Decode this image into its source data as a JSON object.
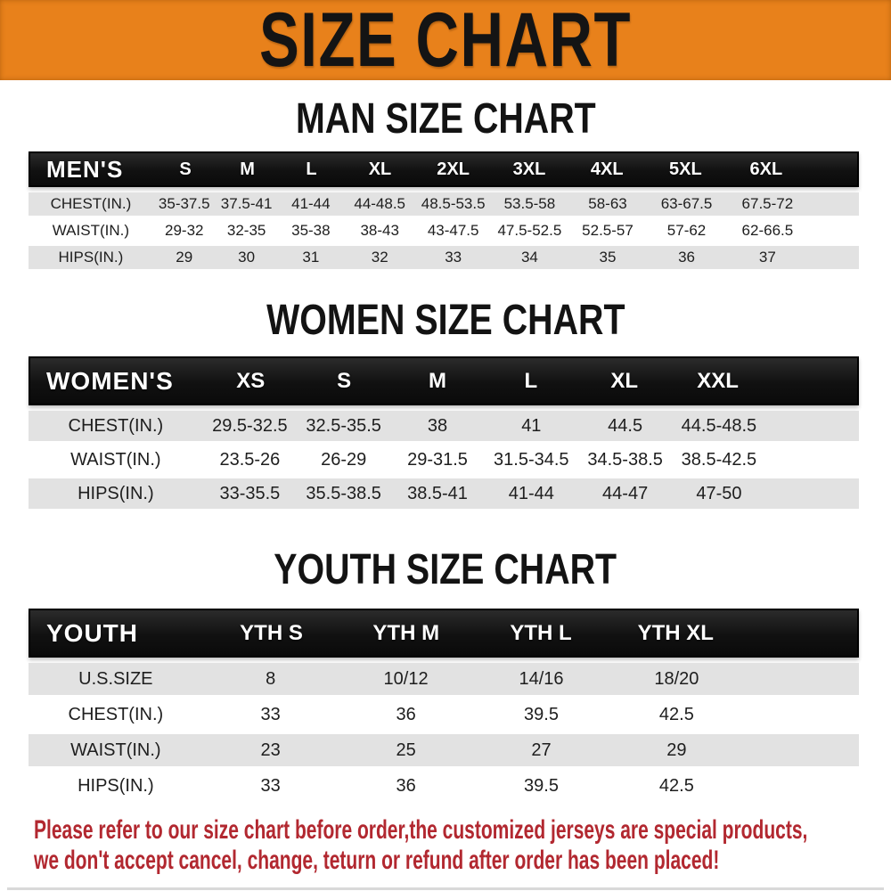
{
  "banner": {
    "title": "SIZE CHART",
    "bg_color": "#E8811B",
    "text_color": "#141414"
  },
  "colors": {
    "row_stripe": "#E2E2E2",
    "header_bg": "#121212",
    "header_text": "#FFFFFF",
    "note_red": "#B22830"
  },
  "sections": [
    {
      "title": "MAN SIZE CHART",
      "header_label": "MEN'S",
      "columns": [
        "S",
        "M",
        "L",
        "XL",
        "2XL",
        "3XL",
        "4XL",
        "5XL",
        "6XL"
      ],
      "rows": [
        {
          "label": "CHEST(IN.)",
          "values": [
            "35-37.5",
            "37.5-41",
            "41-44",
            "44-48.5",
            "48.5-53.5",
            "53.5-58",
            "58-63",
            "63-67.5",
            "67.5-72"
          ]
        },
        {
          "label": "WAIST(IN.)",
          "values": [
            "29-32",
            "32-35",
            "35-38",
            "38-43",
            "43-47.5",
            "47.5-52.5",
            "52.5-57",
            "57-62",
            "62-66.5"
          ]
        },
        {
          "label": "HIPS(IN.)",
          "values": [
            "29",
            "30",
            "31",
            "32",
            "33",
            "34",
            "35",
            "36",
            "37"
          ]
        }
      ]
    },
    {
      "title": "WOMEN SIZE CHART",
      "header_label": "WOMEN'S",
      "columns": [
        "XS",
        "S",
        "M",
        "L",
        "XL",
        "XXL"
      ],
      "rows": [
        {
          "label": "CHEST(IN.)",
          "values": [
            "29.5-32.5",
            "32.5-35.5",
            "38",
            "41",
            "44.5",
            "44.5-48.5"
          ]
        },
        {
          "label": "WAIST(IN.)",
          "values": [
            "23.5-26",
            "26-29",
            "29-31.5",
            "31.5-34.5",
            "34.5-38.5",
            "38.5-42.5"
          ]
        },
        {
          "label": "HIPS(IN.)",
          "values": [
            "33-35.5",
            "35.5-38.5",
            "38.5-41",
            "41-44",
            "44-47",
            "47-50"
          ]
        }
      ]
    },
    {
      "title": "YOUTH SIZE CHART",
      "header_label": "YOUTH",
      "columns": [
        "YTH S",
        "YTH M",
        "YTH L",
        "YTH XL"
      ],
      "rows": [
        {
          "label": "U.S.SIZE",
          "values": [
            "8",
            "10/12",
            "14/16",
            "18/20"
          ]
        },
        {
          "label": "CHEST(IN.)",
          "values": [
            "33",
            "36",
            "39.5",
            "42.5"
          ]
        },
        {
          "label": "WAIST(IN.)",
          "values": [
            "23",
            "25",
            "27",
            "29"
          ]
        },
        {
          "label": "HIPS(IN.)",
          "values": [
            "33",
            "36",
            "39.5",
            "42.5"
          ]
        }
      ]
    }
  ],
  "note": {
    "line1": "Please refer to our size chart before order,the customized jerseys are special products,",
    "line2": "we don't accept cancel, change, teturn or refund after order has been placed!"
  }
}
